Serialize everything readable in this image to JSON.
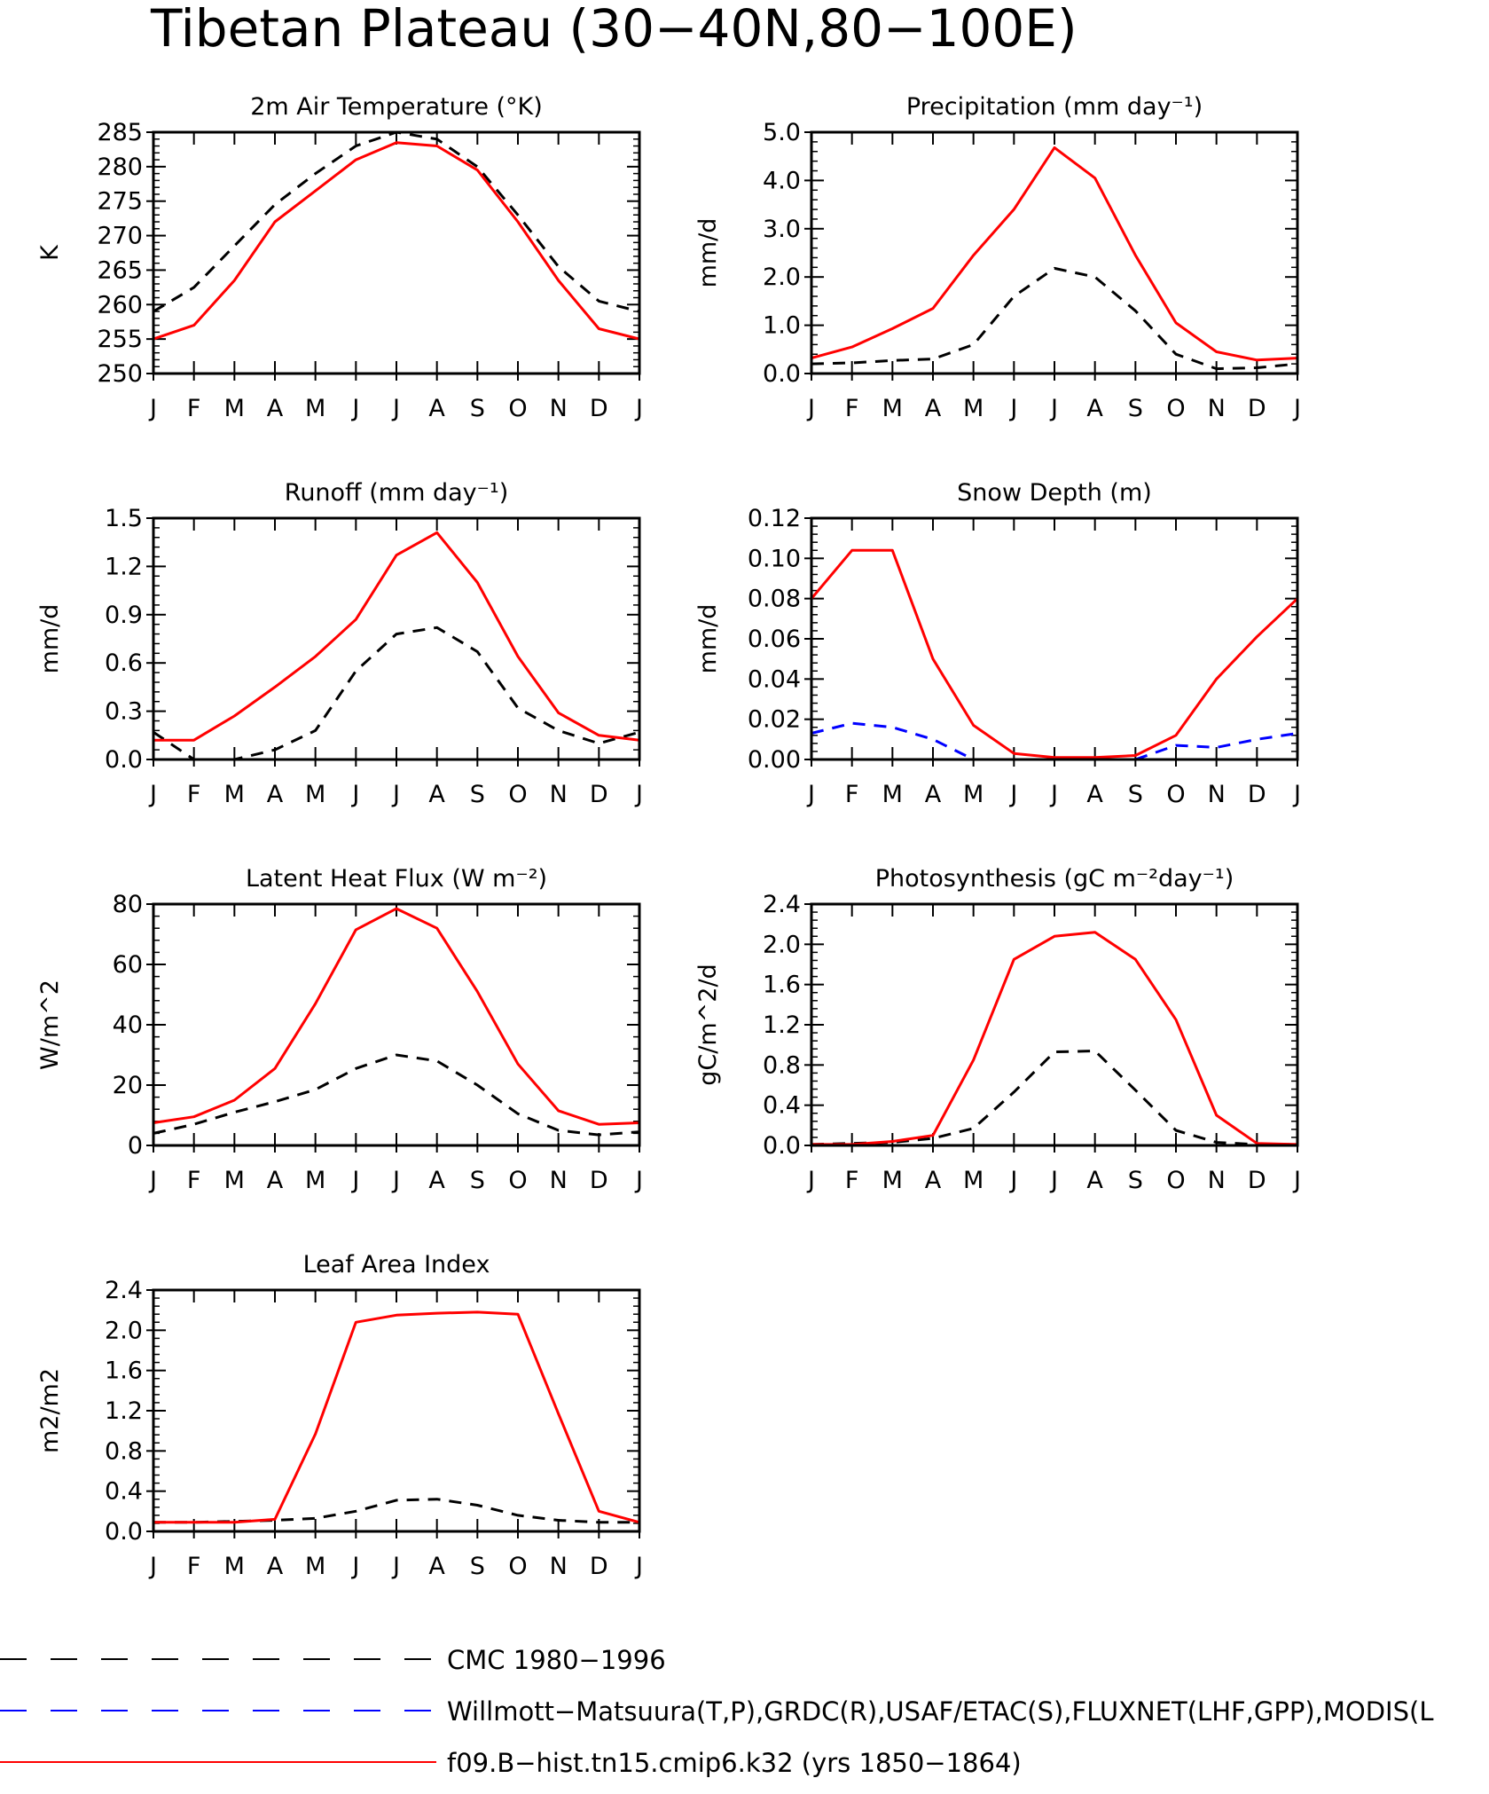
{
  "figure_title": "Tibetan Plateau (30−40N,80−100E)",
  "colors": {
    "model": "#ff0000",
    "obs_cmc": "#000000",
    "obs_other": "#0000ff"
  },
  "legend": [
    {
      "label": "CMC 1980−1996",
      "color": "#000000",
      "style": "dashed"
    },
    {
      "label": "Willmott−Matsuura(T,P),GRDC(R),USAF/ETAC(S),FLUXNET(LHF,GPP),MODIS(L",
      "color": "#0000ff",
      "style": "dashed"
    },
    {
      "label": "f09.B−hist.tn15.cmip6.k32 (yrs 1850−1864)",
      "color": "#ff0000",
      "style": "solid"
    }
  ],
  "chart_data": [
    {
      "type": "line",
      "title": "2m Air Temperature (°K)",
      "ylabel": "K",
      "categories": [
        "J",
        "F",
        "M",
        "A",
        "M",
        "J",
        "J",
        "A",
        "S",
        "O",
        "N",
        "D",
        "J"
      ],
      "ylim": [
        250,
        285
      ],
      "yticks": [
        "250",
        "255",
        "260",
        "265",
        "270",
        "275",
        "280",
        "285"
      ],
      "series": [
        {
          "name": "CMC 1980−1996",
          "values": [
            259,
            262.5,
            268.5,
            274.5,
            279,
            283,
            285,
            284,
            280,
            273,
            265.5,
            260.5,
            259
          ]
        },
        {
          "name": "f09.B−hist.tn15.cmip6.k32 (yrs 1850−1864)",
          "values": [
            255,
            257,
            263.5,
            272,
            276.5,
            281,
            283.5,
            283,
            279.5,
            272,
            263.5,
            256.5,
            255
          ]
        }
      ]
    },
    {
      "type": "line",
      "title": "Precipitation (mm day⁻¹)",
      "ylabel": "mm/d",
      "categories": [
        "J",
        "F",
        "M",
        "A",
        "M",
        "J",
        "J",
        "A",
        "S",
        "O",
        "N",
        "D",
        "J"
      ],
      "ylim": [
        0,
        5
      ],
      "yticks": [
        "0.0",
        "1.0",
        "2.0",
        "3.0",
        "4.0",
        "5.0"
      ],
      "series": [
        {
          "name": "CMC 1980−1996",
          "values": [
            0.2,
            0.22,
            0.27,
            0.3,
            0.6,
            1.6,
            2.18,
            2.0,
            1.3,
            0.4,
            0.1,
            0.12,
            0.2
          ]
        },
        {
          "name": "f09.B−hist.tn15.cmip6.k32 (yrs 1850−1864)",
          "values": [
            0.32,
            0.55,
            0.93,
            1.35,
            2.45,
            3.4,
            4.68,
            4.05,
            2.45,
            1.05,
            0.45,
            0.28,
            0.32
          ]
        }
      ]
    },
    {
      "type": "line",
      "title": "Runoff (mm day⁻¹)",
      "ylabel": "mm/d",
      "categories": [
        "J",
        "F",
        "M",
        "A",
        "M",
        "J",
        "J",
        "A",
        "S",
        "O",
        "N",
        "D",
        "J"
      ],
      "ylim": [
        0,
        1.5
      ],
      "yticks": [
        "0.0",
        "0.3",
        "0.6",
        "0.9",
        "1.2",
        "1.5"
      ],
      "series": [
        {
          "name": "CMC 1980−1996",
          "values": [
            0.17,
            0.0,
            0.0,
            0.06,
            0.18,
            0.55,
            0.78,
            0.82,
            0.67,
            0.32,
            0.18,
            0.1,
            0.17
          ]
        },
        {
          "name": "f09.B−hist.tn15.cmip6.k32 (yrs 1850−1864)",
          "values": [
            0.12,
            0.12,
            0.27,
            0.45,
            0.64,
            0.87,
            1.27,
            1.41,
            1.1,
            0.64,
            0.29,
            0.15,
            0.12
          ]
        }
      ]
    },
    {
      "type": "line",
      "title": "Snow Depth (m)",
      "ylabel": "mm/d",
      "categories": [
        "J",
        "F",
        "M",
        "A",
        "M",
        "J",
        "J",
        "A",
        "S",
        "O",
        "N",
        "D",
        "J"
      ],
      "ylim": [
        0,
        0.12
      ],
      "yticks": [
        "0.00",
        "0.02",
        "0.04",
        "0.06",
        "0.08",
        "0.10",
        "0.12"
      ],
      "series": [
        {
          "name": "CMC 1980−1996",
          "values": [
            0,
            0,
            0,
            0,
            0,
            0,
            0,
            0,
            0,
            0,
            0,
            0,
            0
          ]
        },
        {
          "name": "Willmott−Matsuura(T,P),GRDC(R),USAF/ETAC(S),FLUXNET(LHF,GPP),MODIS(L",
          "values": [
            0.013,
            0.018,
            0.016,
            0.01,
            0.0,
            null,
            null,
            null,
            0.0,
            0.007,
            0.006,
            0.01,
            0.013
          ]
        },
        {
          "name": "f09.B−hist.tn15.cmip6.k32 (yrs 1850−1864)",
          "values": [
            0.08,
            0.104,
            0.104,
            0.05,
            0.017,
            0.003,
            0.001,
            0.001,
            0.002,
            0.012,
            0.04,
            0.061,
            0.08
          ]
        }
      ]
    },
    {
      "type": "line",
      "title": "Latent Heat Flux (W m⁻²)",
      "ylabel": "W/m^2",
      "categories": [
        "J",
        "F",
        "M",
        "A",
        "M",
        "J",
        "J",
        "A",
        "S",
        "O",
        "N",
        "D",
        "J"
      ],
      "ylim": [
        0,
        80
      ],
      "yticks": [
        "0",
        "20",
        "40",
        "60",
        "80"
      ],
      "series": [
        {
          "name": "CMC 1980−1996",
          "values": [
            4,
            7,
            11,
            14.5,
            18.5,
            25.5,
            30,
            28,
            20,
            10.5,
            5,
            3.5,
            4.5
          ]
        },
        {
          "name": "f09.B−hist.tn15.cmip6.k32 (yrs 1850−1864)",
          "values": [
            7.5,
            9.5,
            15,
            25.5,
            47,
            71.5,
            78.5,
            72,
            51,
            27,
            11.5,
            7,
            7.5
          ]
        }
      ]
    },
    {
      "type": "line",
      "title": "Photosynthesis (gC m⁻²day⁻¹)",
      "ylabel": "gC/m^2/d",
      "categories": [
        "J",
        "F",
        "M",
        "A",
        "M",
        "J",
        "J",
        "A",
        "S",
        "O",
        "N",
        "D",
        "J"
      ],
      "ylim": [
        0,
        2.4
      ],
      "yticks": [
        "0.0",
        "0.4",
        "0.8",
        "1.2",
        "1.6",
        "2.0",
        "2.4"
      ],
      "series": [
        {
          "name": "CMC 1980−1996",
          "values": [
            0.01,
            0.02,
            0.03,
            0.07,
            0.17,
            0.53,
            0.93,
            0.94,
            0.55,
            0.15,
            0.03,
            0.01,
            0.01
          ]
        },
        {
          "name": "f09.B−hist.tn15.cmip6.k32 (yrs 1850−1864)",
          "values": [
            0.01,
            0.01,
            0.04,
            0.1,
            0.85,
            1.85,
            2.08,
            2.12,
            1.85,
            1.25,
            0.3,
            0.02,
            0.01
          ]
        }
      ]
    },
    {
      "type": "line",
      "title": "Leaf Area Index",
      "ylabel": "m2/m2",
      "categories": [
        "J",
        "F",
        "M",
        "A",
        "M",
        "J",
        "J",
        "A",
        "S",
        "O",
        "N",
        "D",
        "J"
      ],
      "ylim": [
        0,
        2.4
      ],
      "yticks": [
        "0.0",
        "0.4",
        "0.8",
        "1.2",
        "1.6",
        "2.0",
        "2.4"
      ],
      "series": [
        {
          "name": "CMC 1980−1996",
          "values": [
            0.09,
            0.09,
            0.1,
            0.11,
            0.13,
            0.2,
            0.31,
            0.32,
            0.26,
            0.16,
            0.11,
            0.09,
            0.09
          ]
        },
        {
          "name": "f09.B−hist.tn15.cmip6.k32 (yrs 1850−1864)",
          "values": [
            0.09,
            0.09,
            0.09,
            0.12,
            0.97,
            2.08,
            2.15,
            2.17,
            2.18,
            2.16,
            1.17,
            0.2,
            0.09
          ]
        }
      ]
    }
  ]
}
